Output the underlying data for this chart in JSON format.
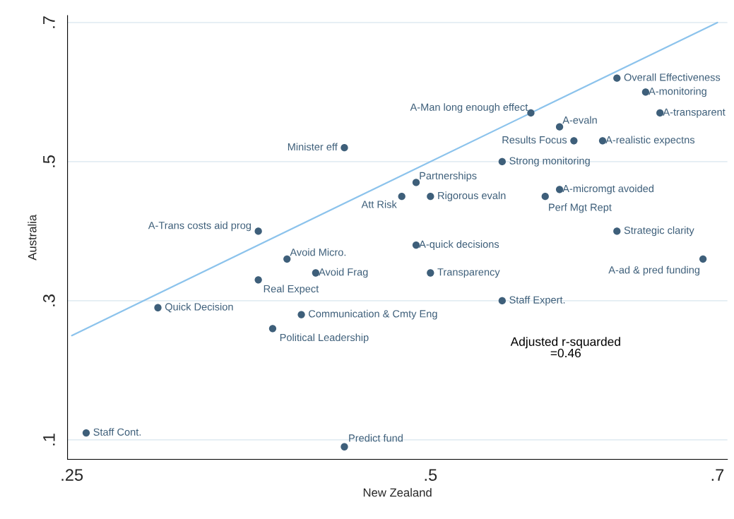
{
  "chart_data": {
    "type": "scatter",
    "xlabel": "New Zealand",
    "ylabel": "Australia",
    "xlim": [
      0.247,
      0.707
    ],
    "ylim": [
      0.072,
      0.71
    ],
    "xticks": [
      {
        "value": 0.25,
        "label": ".25"
      },
      {
        "value": 0.5,
        "label": ".5"
      },
      {
        "value": 0.7,
        "label": ".7"
      }
    ],
    "yticks": [
      {
        "value": 0.1,
        "label": ".1"
      },
      {
        "value": 0.3,
        "label": ".3"
      },
      {
        "value": 0.5,
        "label": ".5"
      },
      {
        "value": 0.7,
        "label": ".7"
      }
    ],
    "grid": "y",
    "series": [
      {
        "marker": "circle",
        "color": "#3e5f7a",
        "x": [
          0.63,
          0.65,
          0.66,
          0.57,
          0.59,
          0.6,
          0.62,
          0.44,
          0.55,
          0.49,
          0.48,
          0.5,
          0.59,
          0.58,
          0.38,
          0.63,
          0.49,
          0.4,
          0.69,
          0.38,
          0.42,
          0.5,
          0.55,
          0.31,
          0.41,
          0.39,
          0.26,
          0.44
        ],
        "values": [
          0.62,
          0.6,
          0.57,
          0.57,
          0.55,
          0.53,
          0.53,
          0.52,
          0.5,
          0.47,
          0.45,
          0.45,
          0.46,
          0.45,
          0.4,
          0.4,
          0.38,
          0.36,
          0.36,
          0.33,
          0.34,
          0.34,
          0.3,
          0.29,
          0.28,
          0.26,
          0.11,
          0.09
        ]
      },
      {
        "type": "line",
        "marker": "none",
        "color": "#8cc3ec",
        "x": [
          0.25,
          0.7
        ],
        "values": [
          0.25,
          0.7
        ]
      }
    ],
    "annotations": [
      {
        "text": "Overall Effectiveness",
        "x": 0.63,
        "y": 0.62
      },
      {
        "text": "A-monitoring",
        "x": 0.65,
        "y": 0.6
      },
      {
        "text": "A-transparent",
        "x": 0.66,
        "y": 0.57
      },
      {
        "text": "A-Man long enough effect",
        "x": 0.57,
        "y": 0.57
      },
      {
        "text": "A-evaln",
        "x": 0.59,
        "y": 0.55
      },
      {
        "text": "Results Focus",
        "x": 0.6,
        "y": 0.53
      },
      {
        "text": "A-realistic expectns",
        "x": 0.62,
        "y": 0.53
      },
      {
        "text": "Minister eff",
        "x": 0.44,
        "y": 0.52
      },
      {
        "text": "Strong monitoring",
        "x": 0.55,
        "y": 0.5
      },
      {
        "text": "Partnerships",
        "x": 0.49,
        "y": 0.47
      },
      {
        "text": "Att Risk",
        "x": 0.48,
        "y": 0.45
      },
      {
        "text": "Rigorous evaln",
        "x": 0.5,
        "y": 0.45
      },
      {
        "text": "A-micromgt avoided",
        "x": 0.59,
        "y": 0.46
      },
      {
        "text": "Perf Mgt Rept",
        "x": 0.58,
        "y": 0.45
      },
      {
        "text": "A-Trans costs aid prog",
        "x": 0.38,
        "y": 0.4
      },
      {
        "text": "Strategic clarity",
        "x": 0.63,
        "y": 0.4
      },
      {
        "text": "A-quick decisions",
        "x": 0.49,
        "y": 0.38
      },
      {
        "text": "Avoid Micro.",
        "x": 0.4,
        "y": 0.36
      },
      {
        "text": "A-ad & pred funding",
        "x": 0.69,
        "y": 0.36
      },
      {
        "text": "Real Expect",
        "x": 0.38,
        "y": 0.33
      },
      {
        "text": "Avoid Frag",
        "x": 0.42,
        "y": 0.34
      },
      {
        "text": "Transparency",
        "x": 0.5,
        "y": 0.34
      },
      {
        "text": "Staff Expert.",
        "x": 0.55,
        "y": 0.3
      },
      {
        "text": "Quick Decision",
        "x": 0.31,
        "y": 0.29
      },
      {
        "text": "Communication & Cmty Eng",
        "x": 0.41,
        "y": 0.28
      },
      {
        "text": "Political Leadership",
        "x": 0.39,
        "y": 0.26
      },
      {
        "text": "Staff Cont.",
        "x": 0.26,
        "y": 0.11
      },
      {
        "text": "Predict fund",
        "x": 0.44,
        "y": 0.09
      },
      "Adjusted r-squarded\n=0.46"
    ]
  }
}
